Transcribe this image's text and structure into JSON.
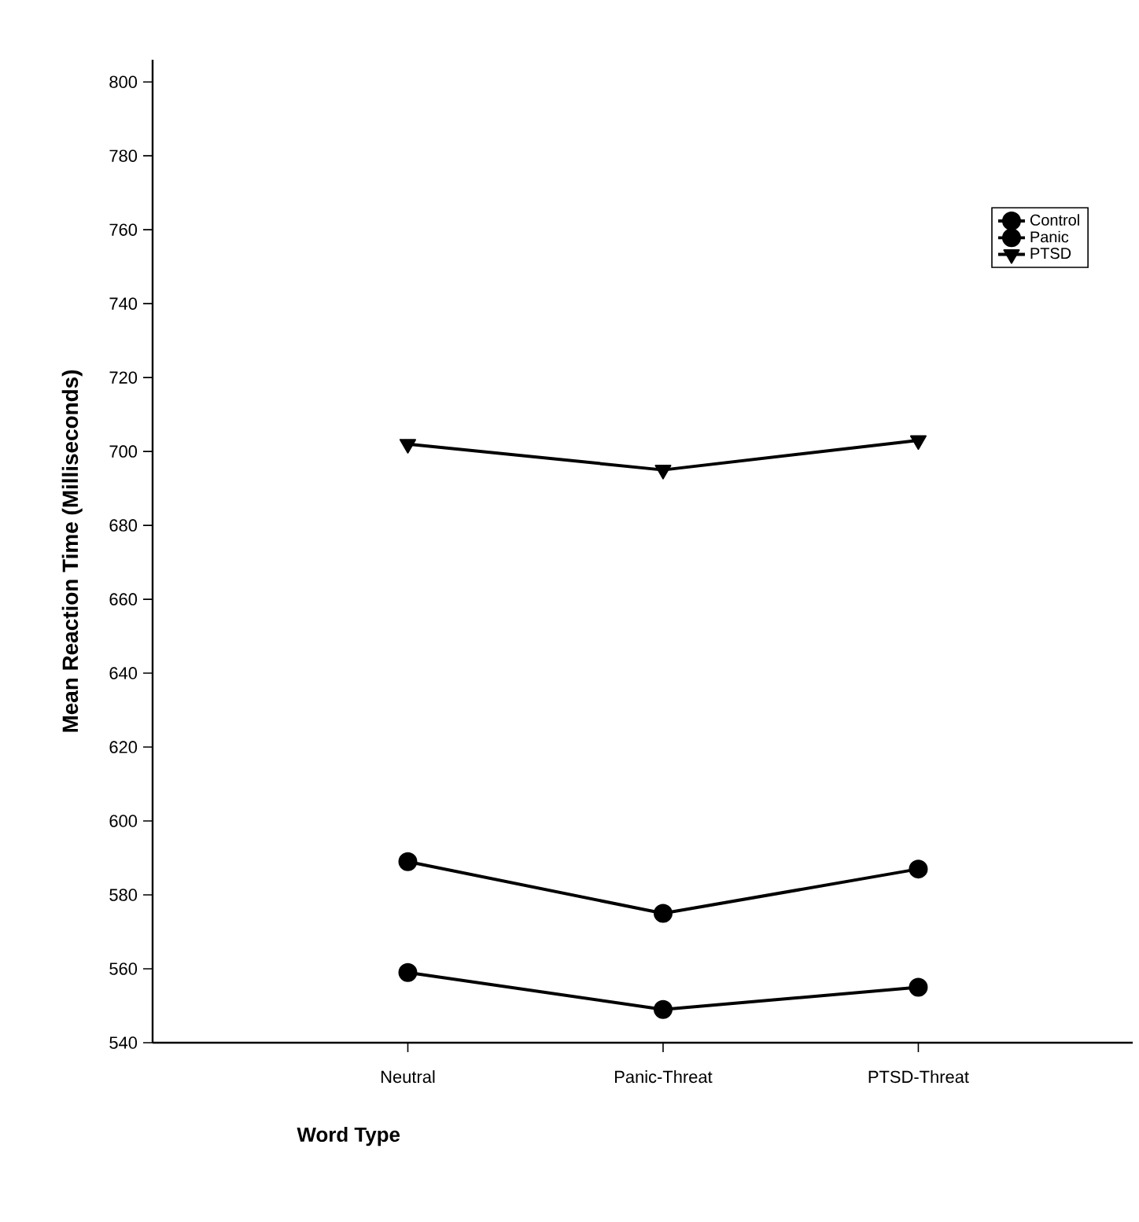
{
  "chart_data": {
    "type": "line",
    "xlabel": "Word Type",
    "ylabel": "Mean Reaction Time (Milliseconds)",
    "categories": [
      "Neutral",
      "Panic-Threat",
      "PTSD-Threat"
    ],
    "series": [
      {
        "name": "Control",
        "color": "#000000",
        "marker": "circle",
        "values": [
          559,
          549,
          555
        ]
      },
      {
        "name": "Panic",
        "color": "#000000",
        "marker": "circle",
        "values": [
          589,
          575,
          587
        ]
      },
      {
        "name": "PTSD",
        "color": "#000000",
        "marker": "triangle",
        "values": [
          702,
          695,
          703
        ]
      }
    ],
    "ylim": [
      540,
      806
    ],
    "yticks": [
      540,
      560,
      580,
      600,
      620,
      640,
      660,
      680,
      700,
      720,
      740,
      760,
      780,
      800
    ],
    "grid": false,
    "legend": "top right",
    "line_style": "solid"
  }
}
